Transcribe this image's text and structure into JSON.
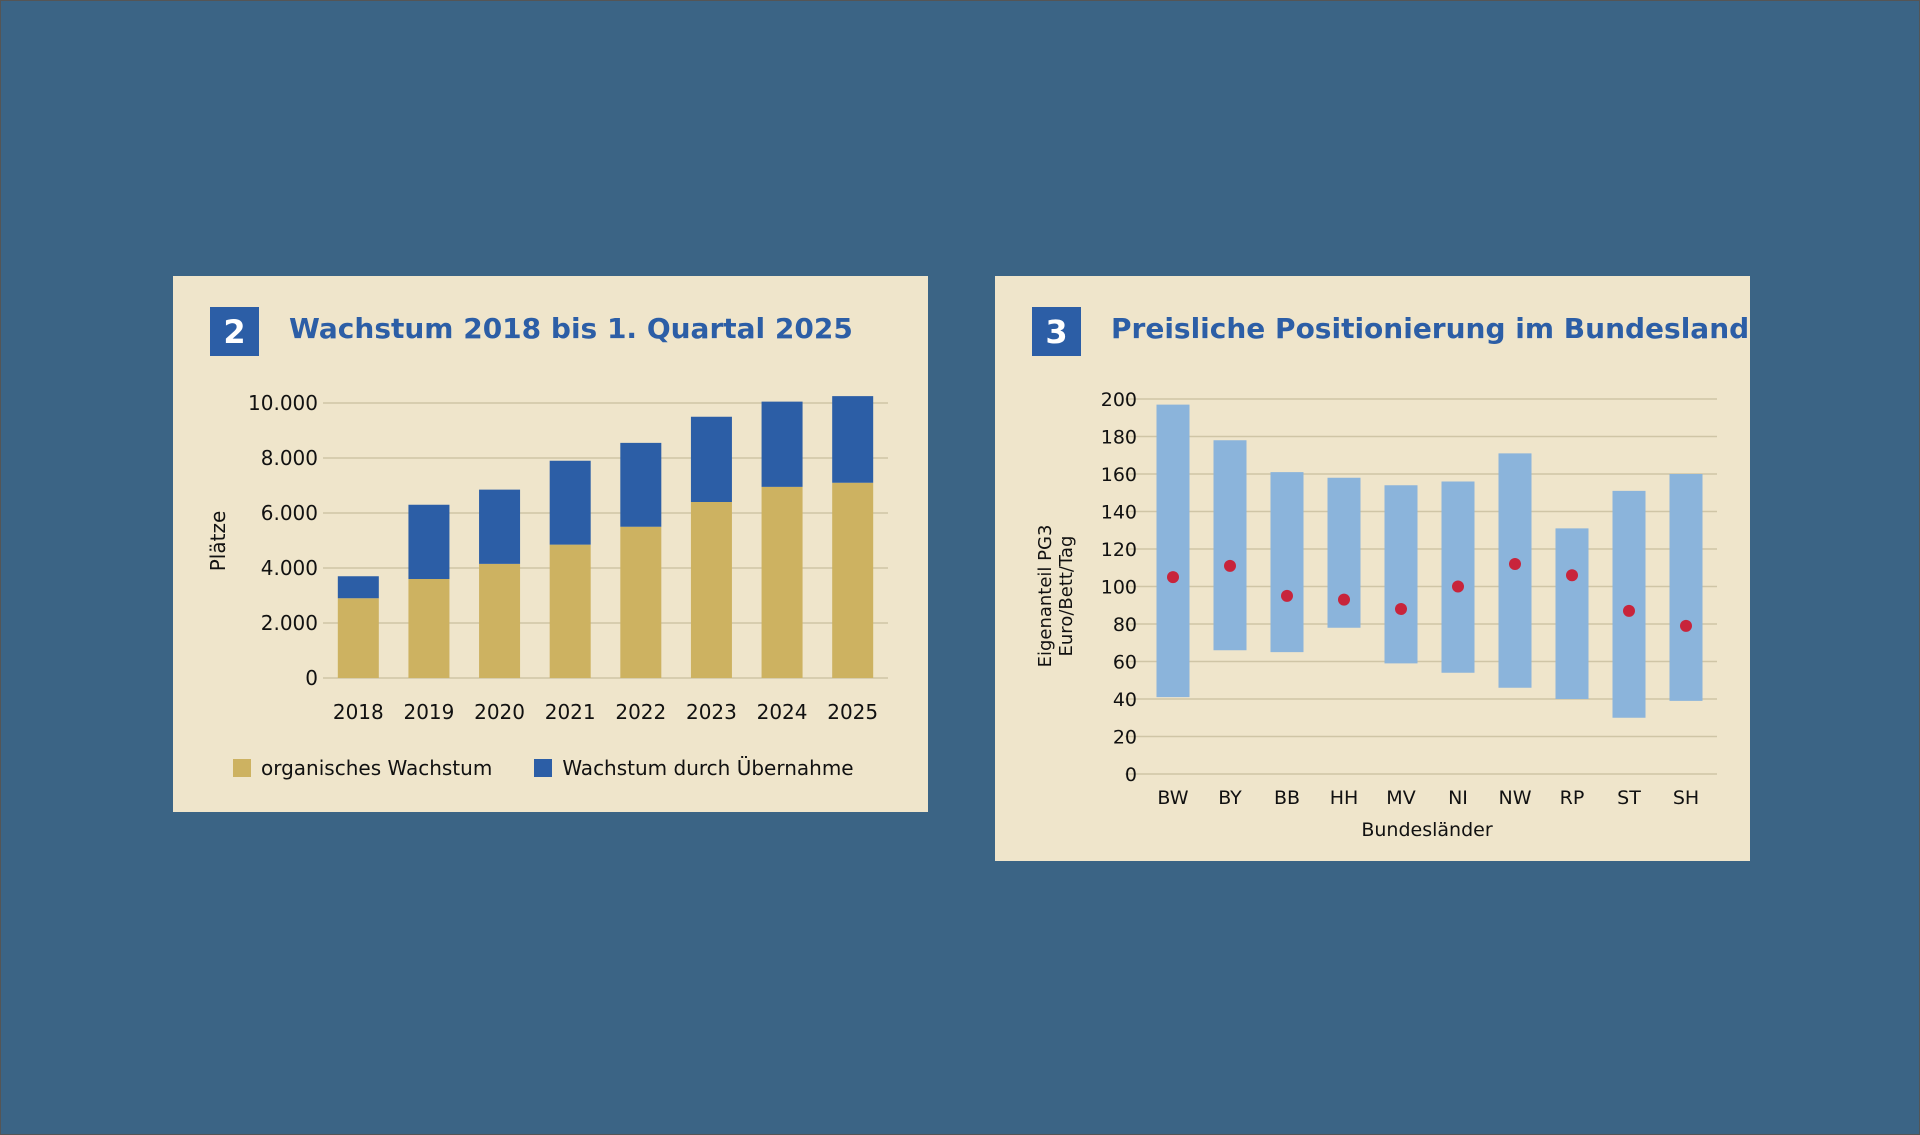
{
  "charts": [
    {
      "badge": "2",
      "title": "Wachstum 2018 bis 1. Quartal 2025",
      "legend": [
        {
          "label": "organisches Wachstum",
          "color": "#cdb261"
        },
        {
          "label": "Wachstum durch Übernahme",
          "color": "#2c5ea6"
        }
      ]
    },
    {
      "badge": "3",
      "title": "Preisliche Positionierung im Bundesland"
    }
  ],
  "chart_data": [
    {
      "type": "bar",
      "stacked": true,
      "title": "Wachstum 2018 bis 1. Quartal 2025",
      "ylabel": "Plätze",
      "xlabel": "",
      "ylim": [
        0,
        10000
      ],
      "yticks": [
        {
          "value": 0,
          "label": "0"
        },
        {
          "value": 2000,
          "label": "2.000"
        },
        {
          "value": 4000,
          "label": "4.000"
        },
        {
          "value": 6000,
          "label": "6.000"
        },
        {
          "value": 8000,
          "label": "8.000"
        },
        {
          "value": 10000,
          "label": "10.000"
        }
      ],
      "categories": [
        "2018",
        "2019",
        "2020",
        "2021",
        "2022",
        "2023",
        "2024",
        "2025"
      ],
      "series": [
        {
          "name": "organisches Wachstum",
          "color": "#cdb261",
          "values": [
            2900,
            3600,
            4150,
            4850,
            5500,
            6400,
            6950,
            7100
          ]
        },
        {
          "name": "Wachstum durch Übernahme",
          "color": "#2c5ea6",
          "values": [
            800,
            2700,
            2700,
            3050,
            3050,
            3100,
            3100,
            3150
          ]
        }
      ],
      "grid": true,
      "legend_position": "bottom"
    },
    {
      "type": "range-bar",
      "title": "Preisliche Positionierung im Bundesland",
      "ylabel": "Eigenanteil PG3 Euro/Bett/Tag",
      "ylabel_lines": [
        "Eigenanteil PG3",
        "Euro/Bett/Tag"
      ],
      "xlabel": "Bundesländer",
      "ylim": [
        0,
        200
      ],
      "yticks": [
        0,
        20,
        40,
        60,
        80,
        100,
        120,
        140,
        160,
        180,
        200
      ],
      "categories": [
        "BW",
        "BY",
        "BB",
        "HH",
        "MV",
        "NI",
        "NW",
        "RP",
        "ST",
        "SH"
      ],
      "range_min": [
        41,
        66,
        65,
        78,
        59,
        54,
        46,
        40,
        30,
        39
      ],
      "range_max": [
        197,
        178,
        161,
        158,
        154,
        156,
        171,
        131,
        151,
        160
      ],
      "points": [
        105,
        111,
        95,
        93,
        88,
        100,
        112,
        106,
        87,
        79
      ],
      "range_color": "#8bb4db",
      "point_color": "#c8243b",
      "grid": true
    }
  ]
}
